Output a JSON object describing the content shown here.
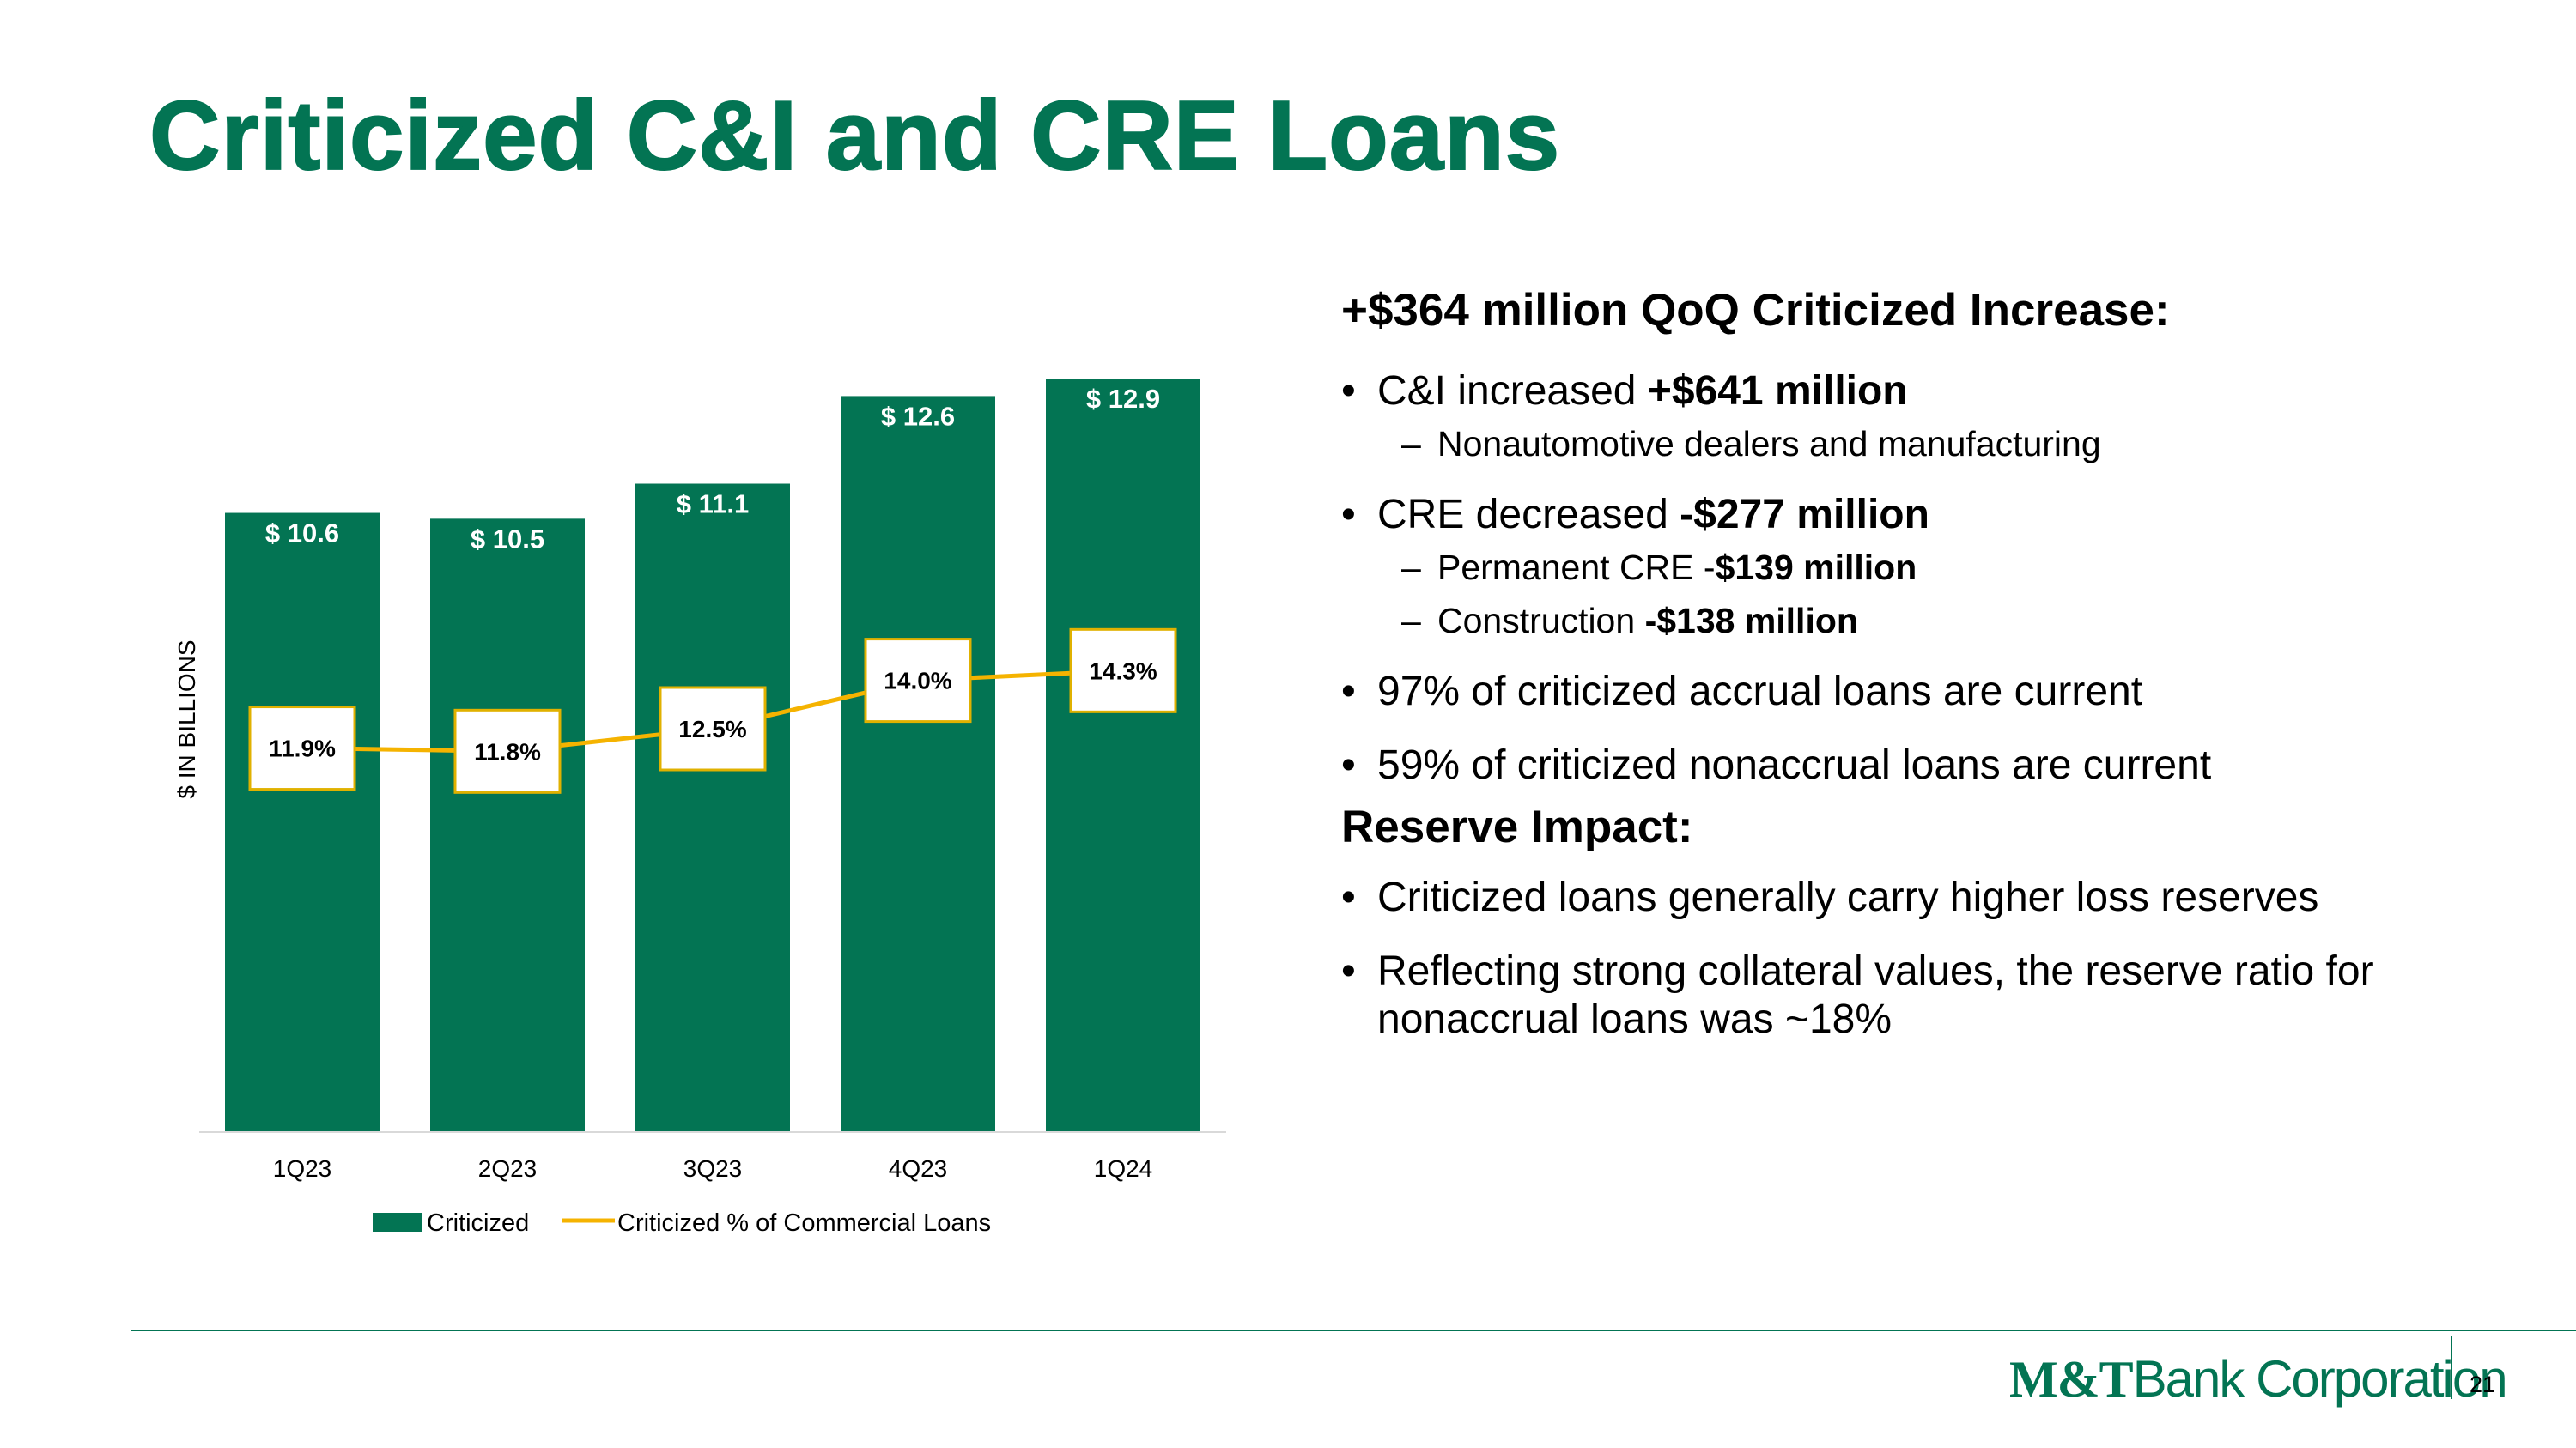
{
  "title": "Criticized C&I and CRE Loans",
  "colors": {
    "brand_green": "#037453",
    "line_gold": "#F5B300",
    "box_border": "#E0B100"
  },
  "chart_data": {
    "type": "bar",
    "title": "",
    "xlabel": "",
    "ylabel": "$ IN BILLIONS",
    "categories": [
      "1Q23",
      "2Q23",
      "3Q23",
      "4Q23",
      "1Q24"
    ],
    "ylim": [
      0,
      14
    ],
    "series": [
      {
        "name": "Criticized",
        "type": "bar",
        "values": [
          10.6,
          10.5,
          11.1,
          12.6,
          12.9
        ],
        "labels": [
          "$ 10.6",
          "$ 10.5",
          "$ 11.1",
          "$ 12.6",
          "$ 12.9"
        ]
      },
      {
        "name": "Criticized % of Commercial Loans",
        "type": "line",
        "values": [
          11.9,
          11.8,
          12.5,
          14.0,
          14.3
        ],
        "labels": [
          "11.9%",
          "11.8%",
          "12.5%",
          "14.0%",
          "14.3%"
        ]
      }
    ],
    "legend": [
      "Criticized",
      "Criticized % of Commercial Loans"
    ],
    "legend_position": "bottom"
  },
  "panel": {
    "heading1": "+$364 million QoQ Criticized Increase:",
    "bullet_char": "•",
    "dash_char": "–",
    "b1": {
      "text": "C&I increased ",
      "bold": "+$641 million"
    },
    "b1_sub": "Nonautomotive dealers and manufacturing",
    "b2": {
      "text": "CRE decreased ",
      "bold": "-$277 million"
    },
    "b2_sub1": {
      "text": "Permanent CRE -",
      "bold": "$139 million"
    },
    "b2_sub2": {
      "text": "Construction ",
      "bold": "-$138 million"
    },
    "b3": "97% of criticized accrual loans are current",
    "b4": "59% of criticized nonaccrual loans are current",
    "heading2": "Reserve Impact:",
    "b5": "Criticized loans generally carry higher loss reserves",
    "b6": "Reflecting strong collateral values, the reserve ratio for nonaccrual loans was ~18%"
  },
  "footer": {
    "logo_mt": "M&T",
    "logo_rest": "Bank Corporation",
    "page_number": "21"
  }
}
